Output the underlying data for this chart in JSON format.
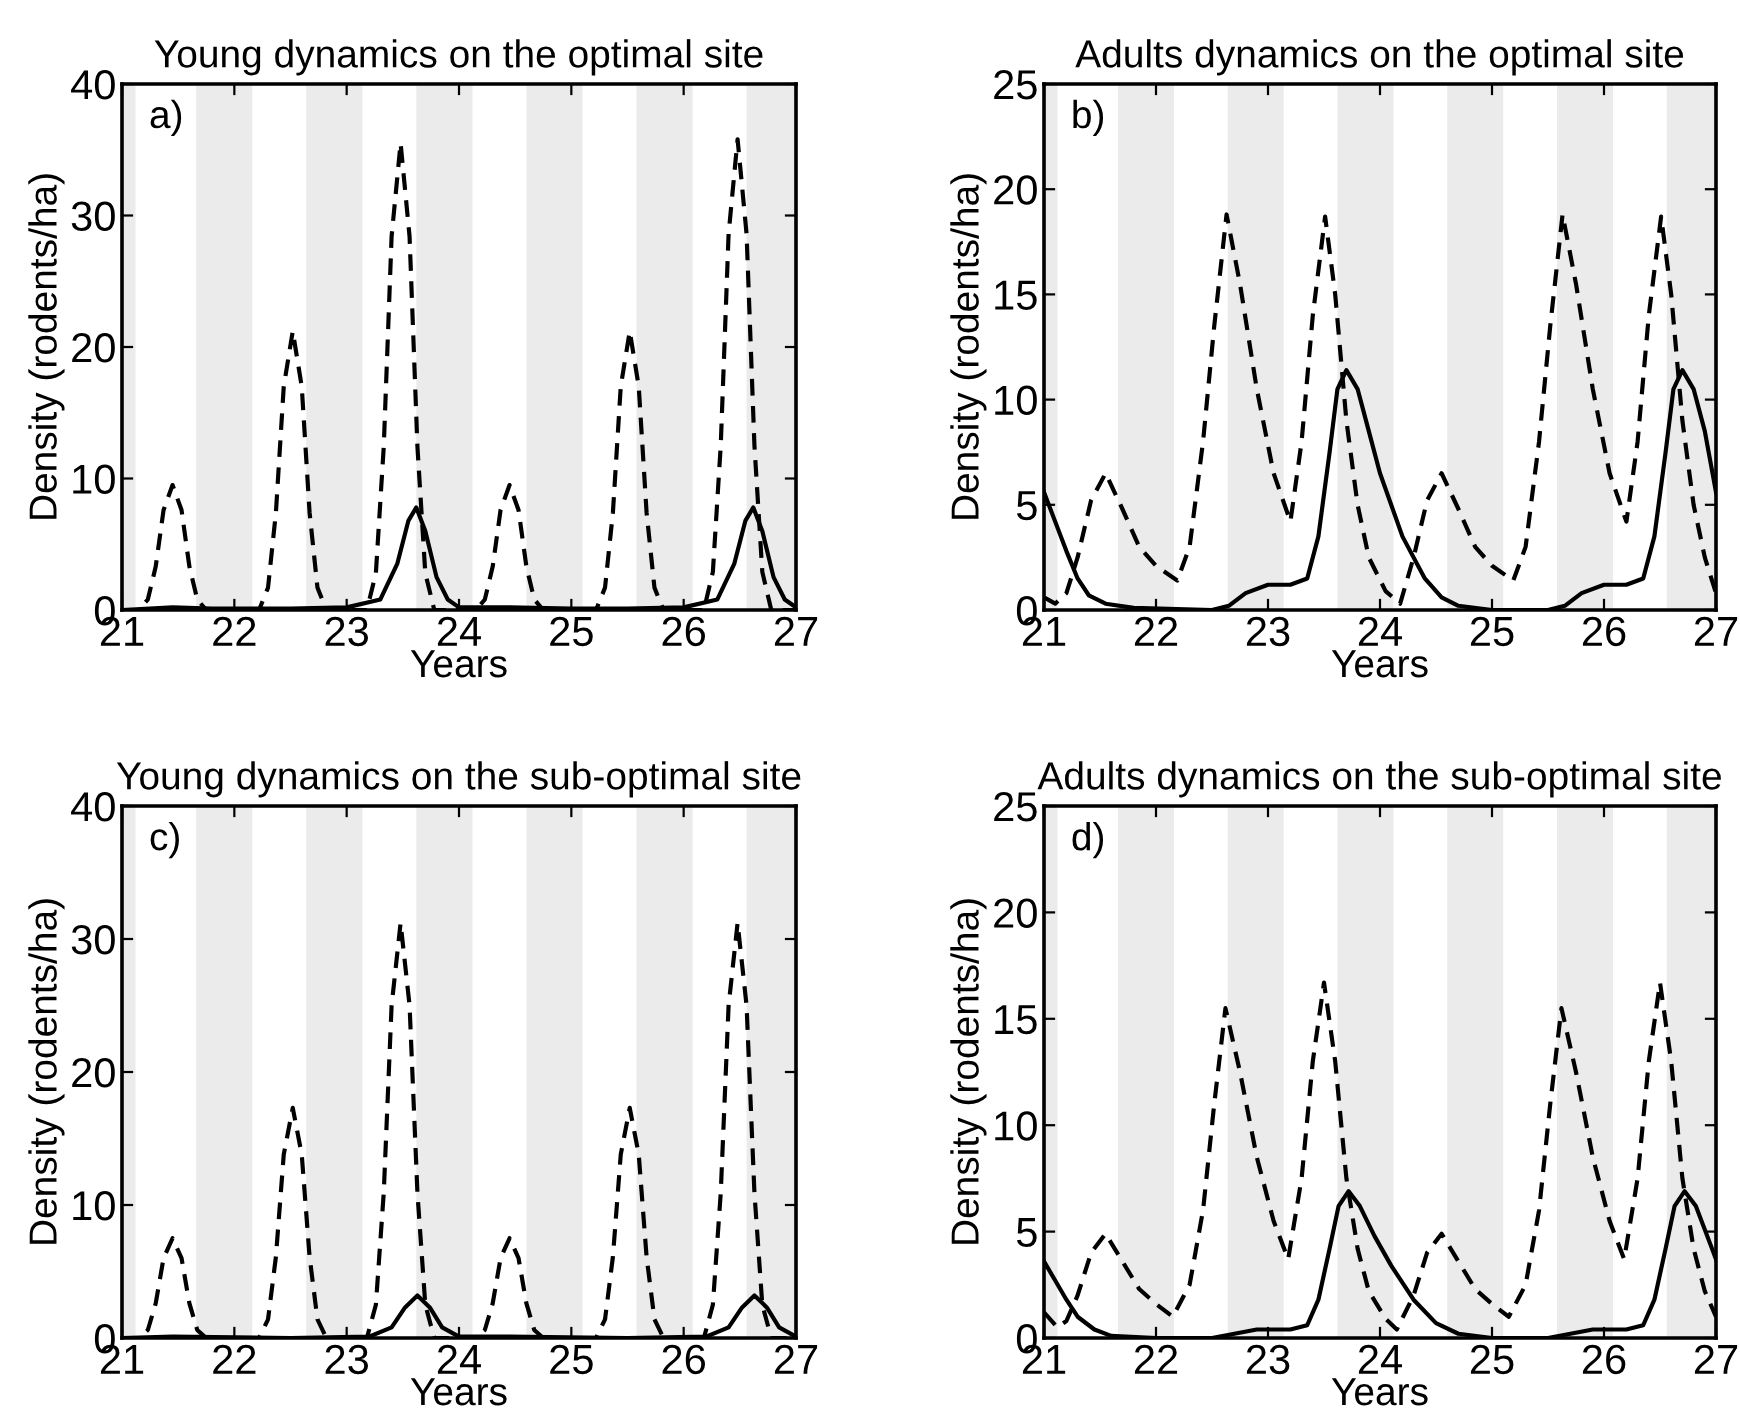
{
  "chart_data": [
    {
      "type": "line",
      "title": "Young dynamics on the optimal site",
      "xlabel": "Years",
      "ylabel": "Density (rodents/ha)",
      "xlim": [
        21,
        27
      ],
      "ylim": [
        0,
        40
      ],
      "xticks": [
        21,
        22,
        23,
        24,
        25,
        26,
        27
      ],
      "yticks": [
        0,
        10,
        20,
        30,
        40
      ],
      "annotations": [
        "a)"
      ],
      "bands": [
        {
          "axis": "x",
          "from": 21.0,
          "to": 21.12,
          "color": "#ebebeb"
        },
        {
          "axis": "x",
          "from": 21.66,
          "to": 22.16,
          "color": "#ebebeb"
        },
        {
          "axis": "x",
          "from": 22.64,
          "to": 23.14,
          "color": "#ebebeb"
        },
        {
          "axis": "x",
          "from": 23.62,
          "to": 24.12,
          "color": "#ebebeb"
        },
        {
          "axis": "x",
          "from": 24.6,
          "to": 25.1,
          "color": "#ebebeb"
        },
        {
          "axis": "x",
          "from": 25.58,
          "to": 26.08,
          "color": "#ebebeb"
        },
        {
          "axis": "x",
          "from": 26.56,
          "to": 27.0,
          "color": "#ebebeb"
        }
      ],
      "series": [
        {
          "color": "#000000",
          "line_style": "dashed",
          "x": [
            21.0,
            21.15,
            21.23,
            21.3,
            21.37,
            21.45,
            21.53,
            21.6,
            21.67,
            21.75,
            22.22,
            22.3,
            22.37,
            22.44,
            22.52,
            22.6,
            22.67,
            22.74,
            22.82,
            23.18,
            23.26,
            23.33,
            23.4,
            23.48,
            23.56,
            23.63,
            23.7,
            23.78,
            24.15,
            24.23,
            24.3,
            24.37,
            24.45,
            24.53,
            24.6,
            24.67,
            24.75,
            25.22,
            25.3,
            25.37,
            25.44,
            25.52,
            25.6,
            25.67,
            25.74,
            25.82,
            26.18,
            26.26,
            26.33,
            26.4,
            26.48,
            26.56,
            26.63,
            26.7,
            26.78,
            27.0
          ],
          "values": [
            0,
            0,
            0.8,
            3.3,
            7.6,
            9.5,
            7.6,
            3.3,
            0.8,
            0,
            0,
            1.7,
            7.4,
            17,
            21.2,
            17,
            7.4,
            1.7,
            0,
            0,
            2.8,
            12.4,
            28.4,
            35.5,
            28.4,
            12.4,
            2.8,
            0,
            0,
            0.8,
            3.3,
            7.6,
            9.5,
            7.6,
            3.3,
            0.8,
            0,
            0,
            1.7,
            7.4,
            17,
            21.2,
            17,
            7.4,
            1.7,
            0,
            0,
            2.9,
            12.5,
            28.6,
            35.8,
            28.6,
            12.5,
            2.9,
            0,
            0
          ]
        },
        {
          "color": "#000000",
          "line_style": "solid",
          "x": [
            21.0,
            21.45,
            21.8,
            22.5,
            23.0,
            23.3,
            23.45,
            23.55,
            23.62,
            23.7,
            23.8,
            23.9,
            24.0,
            24.45,
            25.0,
            25.5,
            26.0,
            26.3,
            26.45,
            26.55,
            26.62,
            26.7,
            26.8,
            26.9,
            27.0
          ],
          "values": [
            0,
            0.2,
            0.1,
            0.1,
            0.2,
            0.8,
            3.5,
            6.8,
            7.8,
            6,
            2.5,
            0.8,
            0.2,
            0.2,
            0.1,
            0.1,
            0.2,
            0.8,
            3.5,
            6.8,
            7.8,
            6,
            2.5,
            0.8,
            0.2
          ]
        }
      ]
    },
    {
      "type": "line",
      "title": "Adults dynamics on the optimal site",
      "xlabel": "Years",
      "ylabel": "Density (rodents/ha)",
      "xlim": [
        21,
        27
      ],
      "ylim": [
        0,
        25
      ],
      "xticks": [
        21,
        22,
        23,
        24,
        25,
        26,
        27
      ],
      "yticks": [
        0,
        5,
        10,
        15,
        20,
        25
      ],
      "annotations": [
        "b)"
      ],
      "bands": [
        {
          "axis": "x",
          "from": 21.0,
          "to": 21.12,
          "color": "#ebebeb"
        },
        {
          "axis": "x",
          "from": 21.66,
          "to": 22.16,
          "color": "#ebebeb"
        },
        {
          "axis": "x",
          "from": 22.64,
          "to": 23.14,
          "color": "#ebebeb"
        },
        {
          "axis": "x",
          "from": 23.62,
          "to": 24.12,
          "color": "#ebebeb"
        },
        {
          "axis": "x",
          "from": 24.6,
          "to": 25.1,
          "color": "#ebebeb"
        },
        {
          "axis": "x",
          "from": 25.58,
          "to": 26.08,
          "color": "#ebebeb"
        },
        {
          "axis": "x",
          "from": 26.56,
          "to": 27.0,
          "color": "#ebebeb"
        }
      ],
      "series": [
        {
          "color": "#000000",
          "line_style": "dashed",
          "x": [
            21.0,
            21.1,
            21.2,
            21.3,
            21.42,
            21.55,
            21.7,
            21.85,
            22.0,
            22.19,
            22.3,
            22.42,
            22.52,
            22.63,
            22.75,
            22.9,
            23.05,
            23.2,
            23.3,
            23.4,
            23.51,
            23.6,
            23.7,
            23.8,
            23.9,
            24.05,
            24.18,
            24.3,
            24.42,
            24.55,
            24.7,
            24.85,
            25.0,
            25.19,
            25.3,
            25.42,
            25.52,
            25.63,
            25.75,
            25.9,
            26.05,
            26.2,
            26.3,
            26.4,
            26.51,
            26.6,
            26.7,
            26.8,
            26.9,
            27.0
          ],
          "values": [
            0.6,
            0.3,
            0.8,
            2.5,
            5.2,
            6.5,
            4.8,
            3.0,
            2.1,
            1.4,
            3.0,
            8,
            13.5,
            18.8,
            15.5,
            10.5,
            6.5,
            4.2,
            8,
            14,
            18.7,
            15,
            9,
            5,
            2.5,
            0.9,
            0.3,
            2.5,
            5.2,
            6.5,
            4.8,
            3.0,
            2.1,
            1.4,
            3.0,
            8,
            13.5,
            18.8,
            15.5,
            10.5,
            6.5,
            4.2,
            8,
            14,
            18.7,
            15,
            9,
            5,
            2.5,
            0.8
          ]
        },
        {
          "color": "#000000",
          "line_style": "solid",
          "x": [
            21.0,
            21.1,
            21.2,
            21.3,
            21.4,
            21.55,
            21.8,
            22.5,
            22.65,
            22.8,
            23.0,
            23.2,
            23.35,
            23.45,
            23.55,
            23.62,
            23.7,
            23.8,
            23.9,
            24.0,
            24.2,
            24.4,
            24.55,
            24.7,
            25.0,
            25.5,
            25.65,
            25.8,
            26.0,
            26.2,
            26.35,
            26.45,
            26.55,
            26.62,
            26.7,
            26.8,
            26.9,
            27.0
          ],
          "values": [
            5.6,
            4.2,
            2.8,
            1.5,
            0.7,
            0.3,
            0.1,
            0,
            0.2,
            0.8,
            1.2,
            1.2,
            1.5,
            3.5,
            7.5,
            10.5,
            11.4,
            10.5,
            8.5,
            6.5,
            3.5,
            1.5,
            0.6,
            0.2,
            0,
            0,
            0.2,
            0.8,
            1.2,
            1.2,
            1.5,
            3.5,
            7.5,
            10.5,
            11.4,
            10.5,
            8.5,
            5.6
          ]
        }
      ]
    },
    {
      "type": "line",
      "title": "Young dynamics on the sub-optimal site",
      "xlabel": "Years",
      "ylabel": "Density (rodents/ha)",
      "xlim": [
        21,
        27
      ],
      "ylim": [
        0,
        40
      ],
      "xticks": [
        21,
        22,
        23,
        24,
        25,
        26,
        27
      ],
      "yticks": [
        0,
        10,
        20,
        30,
        40
      ],
      "annotations": [
        "c)"
      ],
      "bands": [
        {
          "axis": "x",
          "from": 21.0,
          "to": 21.12,
          "color": "#ebebeb"
        },
        {
          "axis": "x",
          "from": 21.66,
          "to": 22.16,
          "color": "#ebebeb"
        },
        {
          "axis": "x",
          "from": 22.64,
          "to": 23.14,
          "color": "#ebebeb"
        },
        {
          "axis": "x",
          "from": 23.62,
          "to": 24.12,
          "color": "#ebebeb"
        },
        {
          "axis": "x",
          "from": 24.6,
          "to": 25.1,
          "color": "#ebebeb"
        },
        {
          "axis": "x",
          "from": 25.58,
          "to": 26.08,
          "color": "#ebebeb"
        },
        {
          "axis": "x",
          "from": 26.56,
          "to": 27.0,
          "color": "#ebebeb"
        }
      ],
      "series": [
        {
          "color": "#000000",
          "line_style": "dashed",
          "x": [
            21.0,
            21.15,
            21.23,
            21.3,
            21.37,
            21.45,
            21.53,
            21.6,
            21.67,
            21.75,
            22.22,
            22.3,
            22.37,
            22.44,
            22.52,
            22.6,
            22.67,
            22.74,
            22.82,
            23.18,
            23.26,
            23.33,
            23.4,
            23.48,
            23.56,
            23.63,
            23.7,
            23.78,
            24.15,
            24.23,
            24.3,
            24.37,
            24.45,
            24.53,
            24.6,
            24.67,
            24.75,
            25.22,
            25.3,
            25.37,
            25.44,
            25.52,
            25.6,
            25.67,
            25.74,
            25.82,
            26.18,
            26.26,
            26.33,
            26.4,
            26.48,
            26.56,
            26.63,
            26.7,
            26.78,
            27.0
          ],
          "values": [
            0,
            0,
            0.6,
            2.6,
            6,
            7.5,
            6,
            2.6,
            0.6,
            0,
            0,
            1.4,
            6.1,
            13.8,
            17.3,
            13.8,
            6.1,
            1.4,
            0,
            0,
            2.5,
            10.9,
            25,
            31.2,
            25,
            10.9,
            2.5,
            0,
            0,
            0.6,
            2.6,
            6,
            7.5,
            6,
            2.6,
            0.6,
            0,
            0,
            1.4,
            6.1,
            13.8,
            17.3,
            13.8,
            6.1,
            1.4,
            0,
            0,
            2.5,
            10.9,
            25,
            31.2,
            25,
            10.9,
            2.5,
            0,
            0
          ]
        },
        {
          "color": "#000000",
          "line_style": "solid",
          "x": [
            21.0,
            21.45,
            22.5,
            23.2,
            23.4,
            23.52,
            23.63,
            23.74,
            23.85,
            24.0,
            24.45,
            25.5,
            26.2,
            26.4,
            26.52,
            26.63,
            26.74,
            26.85,
            27.0
          ],
          "values": [
            0,
            0.1,
            0,
            0.1,
            0.8,
            2.3,
            3.2,
            2.3,
            0.8,
            0.1,
            0.1,
            0,
            0.1,
            0.8,
            2.3,
            3.2,
            2.3,
            0.8,
            0.1
          ]
        }
      ]
    },
    {
      "type": "line",
      "title": "Adults dynamics on the sub-optimal site",
      "xlabel": "Years",
      "ylabel": "Density (rodents/ha)",
      "xlim": [
        21,
        27
      ],
      "ylim": [
        0,
        25
      ],
      "xticks": [
        21,
        22,
        23,
        24,
        25,
        26,
        27
      ],
      "yticks": [
        0,
        5,
        10,
        15,
        20,
        25
      ],
      "annotations": [
        "d)"
      ],
      "bands": [
        {
          "axis": "x",
          "from": 21.0,
          "to": 21.12,
          "color": "#ebebeb"
        },
        {
          "axis": "x",
          "from": 21.66,
          "to": 22.16,
          "color": "#ebebeb"
        },
        {
          "axis": "x",
          "from": 22.64,
          "to": 23.14,
          "color": "#ebebeb"
        },
        {
          "axis": "x",
          "from": 23.62,
          "to": 24.12,
          "color": "#ebebeb"
        },
        {
          "axis": "x",
          "from": 24.6,
          "to": 25.1,
          "color": "#ebebeb"
        },
        {
          "axis": "x",
          "from": 25.58,
          "to": 26.08,
          "color": "#ebebeb"
        },
        {
          "axis": "x",
          "from": 26.56,
          "to": 27.0,
          "color": "#ebebeb"
        }
      ],
      "series": [
        {
          "color": "#000000",
          "line_style": "dashed",
          "x": [
            21.0,
            21.12,
            21.2,
            21.3,
            21.42,
            21.55,
            21.7,
            21.85,
            22.0,
            22.15,
            22.3,
            22.42,
            22.52,
            22.62,
            22.75,
            22.9,
            23.05,
            23.18,
            23.3,
            23.4,
            23.5,
            23.6,
            23.7,
            23.8,
            23.9,
            24.05,
            24.15,
            24.3,
            24.42,
            24.55,
            24.7,
            24.85,
            25.0,
            25.15,
            25.3,
            25.42,
            25.52,
            25.62,
            25.75,
            25.9,
            26.05,
            26.18,
            26.3,
            26.4,
            26.5,
            26.6,
            26.7,
            26.8,
            26.9,
            27.0
          ],
          "values": [
            1.2,
            0.5,
            0.8,
            2.0,
            4.0,
            4.9,
            3.6,
            2.3,
            1.6,
            1.0,
            2.5,
            6,
            11,
            15.5,
            12.5,
            8.5,
            5.5,
            3.7,
            7.5,
            13,
            16.7,
            13,
            7.5,
            4.2,
            2.2,
            0.9,
            0.4,
            2.0,
            4.0,
            4.9,
            3.6,
            2.3,
            1.6,
            1.0,
            2.5,
            6,
            11,
            15.5,
            12.5,
            8.5,
            5.5,
            3.7,
            7.5,
            13,
            16.7,
            13,
            7.5,
            4.2,
            2.2,
            1.0
          ]
        },
        {
          "color": "#000000",
          "line_style": "solid",
          "x": [
            21.0,
            21.1,
            21.2,
            21.3,
            21.45,
            21.6,
            22.0,
            22.5,
            22.7,
            22.9,
            23.2,
            23.35,
            23.45,
            23.55,
            23.63,
            23.72,
            23.82,
            23.95,
            24.1,
            24.3,
            24.5,
            24.7,
            25.0,
            25.5,
            25.7,
            25.9,
            26.2,
            26.35,
            26.45,
            26.55,
            26.63,
            26.72,
            26.82,
            26.95,
            27.0
          ],
          "values": [
            3.6,
            2.7,
            1.8,
            1.0,
            0.4,
            0.1,
            0,
            0,
            0.2,
            0.4,
            0.4,
            0.6,
            1.8,
            4.2,
            6.2,
            6.9,
            6.2,
            4.8,
            3.4,
            1.8,
            0.7,
            0.2,
            0,
            0,
            0.2,
            0.4,
            0.4,
            0.6,
            1.8,
            4.2,
            6.2,
            6.9,
            6.2,
            4.4,
            3.7
          ]
        }
      ]
    }
  ]
}
